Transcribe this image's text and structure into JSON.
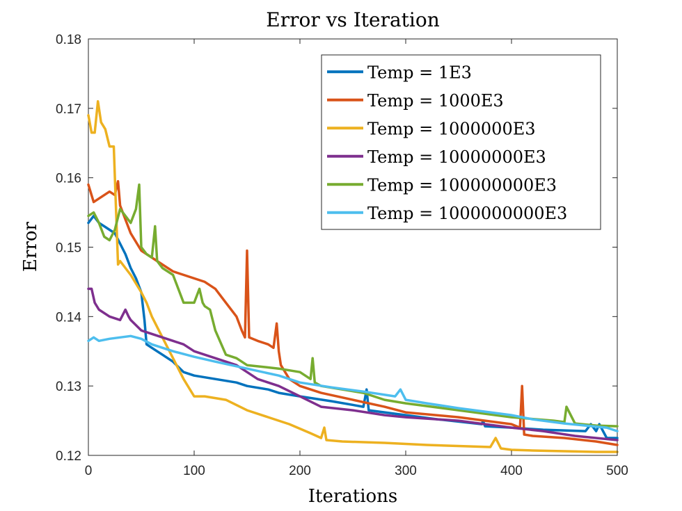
{
  "chart_data": {
    "type": "line",
    "title": "Error vs Iteration",
    "xlabel": "Iterations",
    "ylabel": "Error",
    "xlim": [
      0,
      500
    ],
    "ylim": [
      0.12,
      0.18
    ],
    "xticks": [
      0,
      100,
      200,
      300,
      400,
      500
    ],
    "xtick_labels": [
      "0",
      "100",
      "200",
      "300",
      "400",
      "500"
    ],
    "yticks": [
      0.12,
      0.13,
      0.14,
      0.15,
      0.16,
      0.17,
      0.18
    ],
    "ytick_labels": [
      "0.12",
      "0.13",
      "0.14",
      "0.15",
      "0.16",
      "0.17",
      "0.18"
    ],
    "grid": false,
    "legend": "top-right",
    "series": [
      {
        "name": "Temp = 1E3",
        "color": "#0072BD",
        "x": [
          0,
          5,
          10,
          15,
          20,
          25,
          30,
          35,
          40,
          45,
          50,
          53,
          55,
          60,
          70,
          80,
          90,
          100,
          120,
          140,
          150,
          170,
          180,
          200,
          230,
          260,
          263,
          265,
          280,
          300,
          330,
          372,
          373,
          375,
          400,
          430,
          470,
          475,
          480,
          483,
          490,
          500
        ],
        "y": [
          0.1535,
          0.1545,
          0.1535,
          0.153,
          0.1525,
          0.152,
          0.1505,
          0.149,
          0.147,
          0.1455,
          0.1435,
          0.1395,
          0.136,
          0.1355,
          0.1345,
          0.1335,
          0.132,
          0.1315,
          0.131,
          0.1305,
          0.13,
          0.1295,
          0.129,
          0.1285,
          0.1278,
          0.127,
          0.1295,
          0.1265,
          0.1262,
          0.1258,
          0.1252,
          0.1245,
          0.125,
          0.1242,
          0.124,
          0.1237,
          0.1235,
          0.1245,
          0.1235,
          0.1245,
          0.1225,
          0.1225
        ]
      },
      {
        "name": "Temp = 1000E3",
        "color": "#D95319",
        "x": [
          0,
          5,
          10,
          20,
          25,
          28,
          30,
          35,
          40,
          50,
          60,
          70,
          80,
          90,
          100,
          110,
          120,
          130,
          140,
          145,
          148,
          150,
          152,
          160,
          170,
          175,
          178,
          180,
          182,
          190,
          200,
          220,
          250,
          280,
          300,
          350,
          400,
          408,
          410,
          412,
          420,
          450,
          480,
          500
        ],
        "y": [
          0.159,
          0.1565,
          0.157,
          0.158,
          0.1575,
          0.1595,
          0.156,
          0.154,
          0.152,
          0.1495,
          0.1485,
          0.1475,
          0.1465,
          0.146,
          0.1455,
          0.145,
          0.144,
          0.142,
          0.14,
          0.138,
          0.137,
          0.1495,
          0.137,
          0.1365,
          0.136,
          0.1355,
          0.139,
          0.135,
          0.133,
          0.131,
          0.13,
          0.129,
          0.128,
          0.127,
          0.1262,
          0.1255,
          0.1245,
          0.124,
          0.13,
          0.123,
          0.1228,
          0.1225,
          0.122,
          0.1215
        ]
      },
      {
        "name": "Temp = 1000000E3",
        "color": "#EDB120",
        "x": [
          0,
          3,
          6,
          9,
          12,
          16,
          20,
          24,
          26,
          28,
          30,
          35,
          40,
          50,
          55,
          60,
          70,
          80,
          90,
          100,
          110,
          130,
          150,
          170,
          190,
          210,
          220,
          223,
          225,
          240,
          280,
          320,
          380,
          385,
          390,
          400,
          420,
          450,
          480,
          500
        ],
        "y": [
          0.169,
          0.1665,
          0.1665,
          0.171,
          0.168,
          0.167,
          0.1645,
          0.1645,
          0.156,
          0.1475,
          0.148,
          0.147,
          0.146,
          0.1435,
          0.142,
          0.14,
          0.137,
          0.134,
          0.131,
          0.1285,
          0.1285,
          0.128,
          0.1265,
          0.1255,
          0.1245,
          0.1232,
          0.1225,
          0.124,
          0.1222,
          0.122,
          0.1218,
          0.1215,
          0.1212,
          0.1225,
          0.121,
          0.1208,
          0.1207,
          0.1206,
          0.1205,
          0.1205
        ]
      },
      {
        "name": "Temp = 10000000E3",
        "color": "#7E2F8E",
        "x": [
          0,
          3,
          6,
          10,
          20,
          30,
          35,
          38,
          40,
          50,
          60,
          70,
          80,
          90,
          100,
          120,
          140,
          160,
          180,
          200,
          220,
          250,
          280,
          300,
          350,
          400,
          430,
          460,
          500
        ],
        "y": [
          0.144,
          0.144,
          0.142,
          0.141,
          0.14,
          0.1395,
          0.141,
          0.14,
          0.1395,
          0.138,
          0.1375,
          0.137,
          0.1365,
          0.136,
          0.135,
          0.134,
          0.133,
          0.131,
          0.13,
          0.1285,
          0.127,
          0.1265,
          0.1258,
          0.1255,
          0.125,
          0.124,
          0.1235,
          0.1228,
          0.1222
        ]
      },
      {
        "name": "Temp = 100000000E3",
        "color": "#77AC30",
        "x": [
          0,
          5,
          10,
          15,
          20,
          25,
          30,
          35,
          40,
          45,
          48,
          50,
          55,
          60,
          63,
          65,
          70,
          80,
          90,
          100,
          105,
          108,
          110,
          115,
          120,
          130,
          140,
          150,
          180,
          200,
          210,
          212,
          214,
          220,
          240,
          260,
          280,
          300,
          350,
          400,
          440,
          450,
          452,
          460,
          480,
          500
        ],
        "y": [
          0.1545,
          0.155,
          0.1535,
          0.1515,
          0.151,
          0.1525,
          0.1555,
          0.1545,
          0.1535,
          0.1555,
          0.159,
          0.15,
          0.149,
          0.1485,
          0.153,
          0.148,
          0.147,
          0.146,
          0.142,
          0.142,
          0.144,
          0.142,
          0.1415,
          0.141,
          0.138,
          0.1345,
          0.134,
          0.133,
          0.1325,
          0.132,
          0.131,
          0.134,
          0.1305,
          0.13,
          0.1295,
          0.129,
          0.128,
          0.1275,
          0.1265,
          0.1255,
          0.125,
          0.1248,
          0.127,
          0.1246,
          0.1243,
          0.1242
        ]
      },
      {
        "name": "Temp = 1000000000E3",
        "color": "#4DBEEE",
        "x": [
          0,
          5,
          10,
          20,
          30,
          40,
          50,
          60,
          80,
          100,
          120,
          150,
          180,
          200,
          230,
          260,
          290,
          295,
          300,
          320,
          350,
          380,
          400,
          420,
          450,
          470,
          490,
          500
        ],
        "y": [
          0.1365,
          0.137,
          0.1365,
          0.1368,
          0.137,
          0.1372,
          0.1368,
          0.136,
          0.135,
          0.1342,
          0.1335,
          0.1325,
          0.1315,
          0.1305,
          0.1298,
          0.1292,
          0.1285,
          0.1295,
          0.128,
          0.1275,
          0.1268,
          0.1262,
          0.1258,
          0.1252,
          0.1246,
          0.1243,
          0.124,
          0.1235
        ]
      }
    ]
  }
}
